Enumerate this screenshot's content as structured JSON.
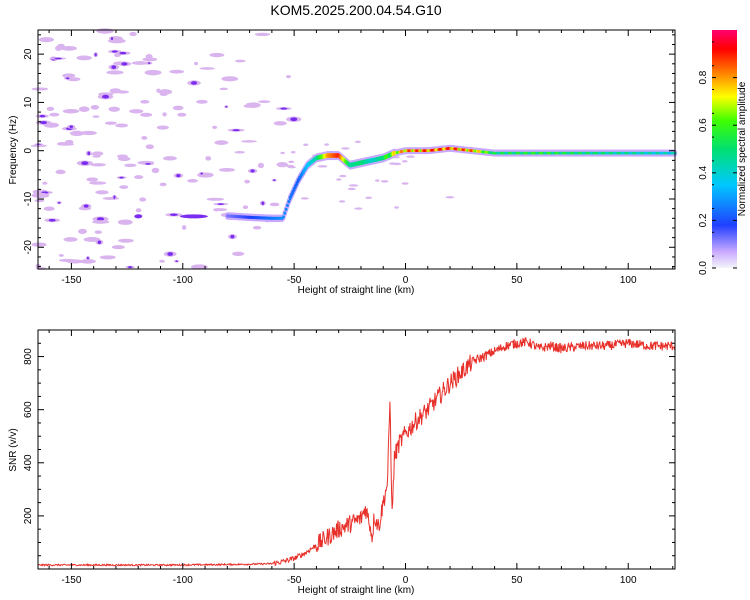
{
  "title": "KOM5.2025.200.04.54.G10",
  "colors": {
    "snr_line": "#e8302a",
    "axis": "#000000",
    "sparse_fill": "#d9b4ee",
    "sparse_core": "#7a2df0"
  },
  "chart_data": [
    {
      "type": "heatmap",
      "title": "KOM5.2025.200.04.54.G10",
      "xlabel": "Height of straight line (km)",
      "ylabel": "Frequency (Hz)",
      "xlim": [
        -165,
        121
      ],
      "ylim": [
        -24.5,
        25
      ],
      "xticks": [
        -150,
        -100,
        -50,
        0,
        50,
        100
      ],
      "yticks": [
        -20,
        -10,
        0,
        10,
        20
      ],
      "colorbar": {
        "label": "Normalized spectral amplitude",
        "ticks": [
          "0.0",
          "0.2",
          "0.4",
          "0.6",
          "0.8"
        ],
        "range": [
          0,
          1
        ],
        "colormap": [
          "#f0f0f8",
          "#b0a0ff",
          "#0000ff",
          "#00d0ff",
          "#00ff40",
          "#ffff00",
          "#ff6000",
          "#ff0060"
        ]
      },
      "ridge": {
        "x": [
          -80,
          -70,
          -60,
          -55,
          -52,
          -48,
          -44,
          -40,
          -35,
          -30,
          -25,
          -20,
          -15,
          -10,
          -5,
          0,
          10,
          20,
          30,
          40,
          60,
          80,
          100,
          121
        ],
        "y": [
          -13.5,
          -13.8,
          -14.0,
          -14.0,
          -10.0,
          -6.0,
          -3.0,
          -1.5,
          -1.0,
          -1.0,
          -3.0,
          -2.5,
          -2.0,
          -1.5,
          -0.5,
          0.0,
          0.0,
          0.5,
          0.0,
          -0.5,
          -0.5,
          -0.5,
          -0.5,
          -0.5
        ],
        "intensity": [
          0.12,
          0.18,
          0.25,
          0.28,
          0.25,
          0.22,
          0.35,
          0.45,
          0.8,
          0.9,
          0.45,
          0.5,
          0.4,
          0.5,
          0.7,
          0.8,
          0.85,
          0.85,
          0.8,
          0.5,
          0.55,
          0.5,
          0.45,
          0.4
        ]
      }
    },
    {
      "type": "line",
      "xlabel": "Height of straight line (km)",
      "ylabel": "SNR (v/v)",
      "xlim": [
        -165,
        121
      ],
      "ylim": [
        0,
        900
      ],
      "xticks": [
        -150,
        -100,
        -50,
        0,
        50,
        100
      ],
      "yticks": [
        200,
        400,
        600,
        800
      ],
      "series": [
        {
          "x": [
            -165,
            -150,
            -130,
            -110,
            -90,
            -70,
            -60,
            -55,
            -50,
            -45,
            -40,
            -35,
            -30,
            -25,
            -20,
            -18,
            -16,
            -15,
            -14,
            -12,
            -10,
            -8,
            -7,
            -6,
            -5,
            -3,
            0,
            5,
            10,
            15,
            20,
            25,
            30,
            35,
            40,
            45,
            50,
            55,
            60,
            65,
            70,
            80,
            90,
            100,
            110,
            121
          ],
          "y": [
            15,
            15,
            15,
            15,
            16,
            18,
            20,
            28,
            40,
            60,
            90,
            120,
            150,
            170,
            190,
            230,
            170,
            120,
            200,
            160,
            250,
            330,
            640,
            200,
            420,
            470,
            510,
            560,
            600,
            650,
            700,
            740,
            780,
            800,
            820,
            840,
            850,
            855,
            830,
            840,
            830,
            840,
            840,
            850,
            840,
            840
          ]
        }
      ]
    }
  ]
}
